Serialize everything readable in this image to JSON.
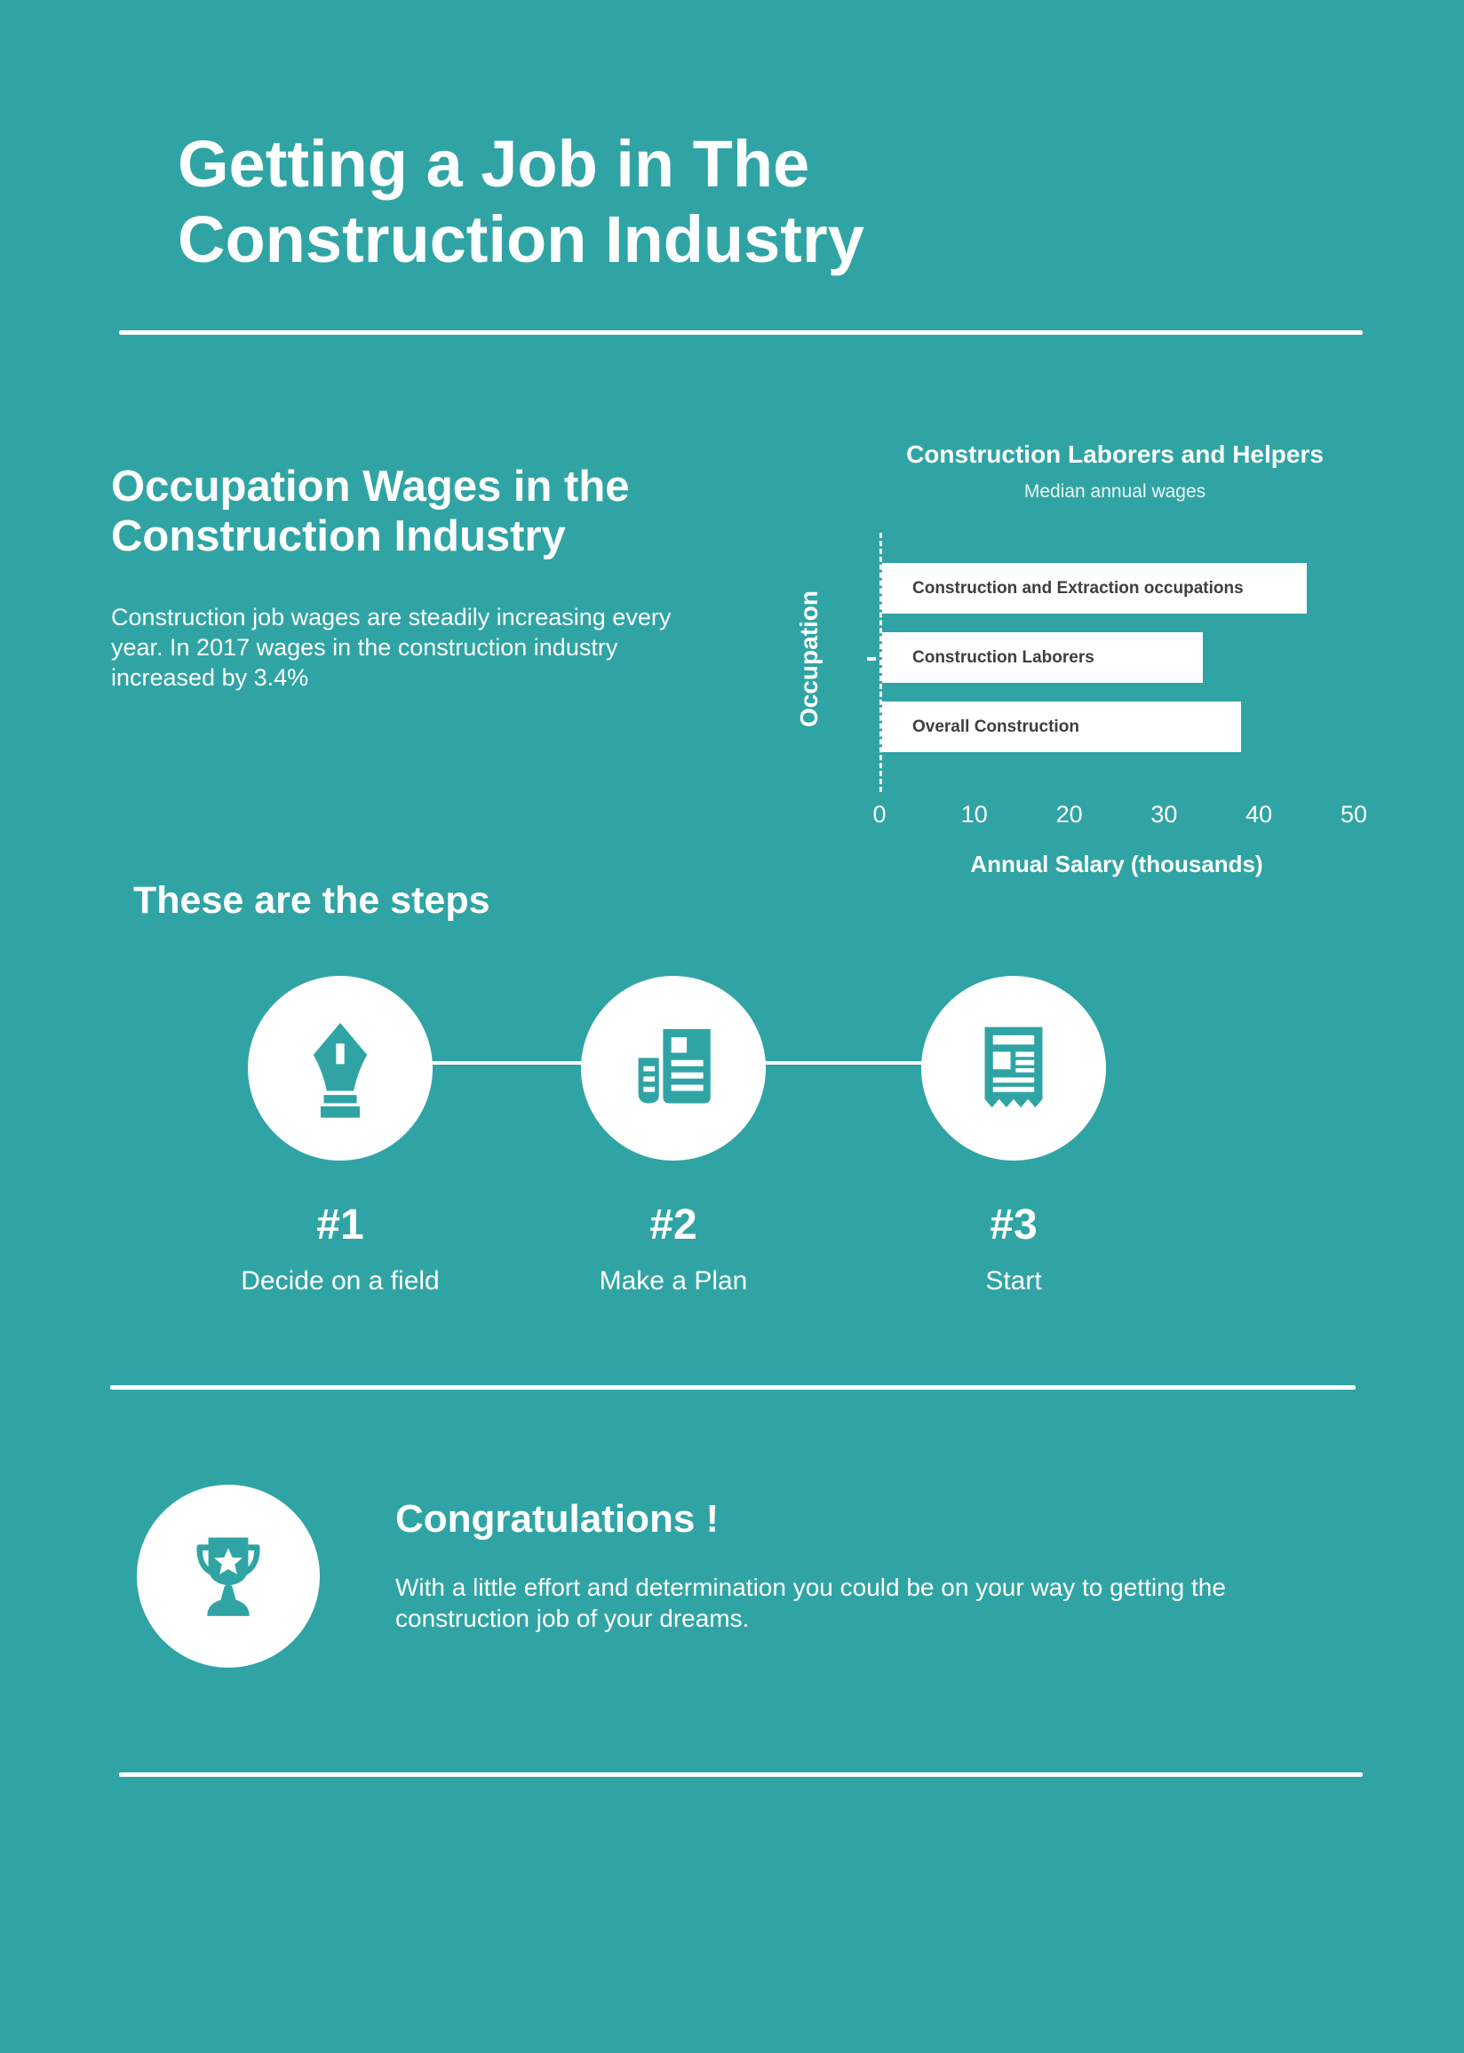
{
  "page": {
    "title": "Getting a Job in The Construction Industry",
    "background_color": "#30A4A4",
    "text_color": "#FFFFFF"
  },
  "wages_section": {
    "heading": "Occupation Wages in the Construction Industry",
    "body": "Construction job wages are steadily increasing every year. In 2017 wages in the construction industry increased by 3.4%"
  },
  "chart_data": {
    "type": "bar",
    "orientation": "horizontal",
    "title": "Construction Laborers and Helpers",
    "subtitle": "Median annual wages",
    "categories": [
      "Construction and Extraction occupations",
      "Construction Laborers",
      "Overall Construction"
    ],
    "values": [
      45,
      34,
      38
    ],
    "xlabel": "Annual Salary (thousands)",
    "ylabel": "Occupation",
    "xlim": [
      0,
      50
    ],
    "xticks": [
      0,
      10,
      20,
      30,
      40,
      50
    ],
    "grid": false,
    "bar_color": "#FFFFFF",
    "bar_text_color": "#3E3E3E",
    "axis_style": "dashed-white-left-axis"
  },
  "steps_section": {
    "heading": "These are the steps",
    "items": [
      {
        "number": "#1",
        "label": "Decide on a field",
        "icon": "pen-nib-icon"
      },
      {
        "number": "#2",
        "label": "Make a Plan",
        "icon": "newspaper-icon"
      },
      {
        "number": "#3",
        "label": "Start",
        "icon": "receipt-icon"
      }
    ]
  },
  "congrats_section": {
    "icon": "trophy-icon",
    "heading": "Congratulations !",
    "body": "With a little effort and determination you could be on your way to getting the construction job of your dreams."
  }
}
